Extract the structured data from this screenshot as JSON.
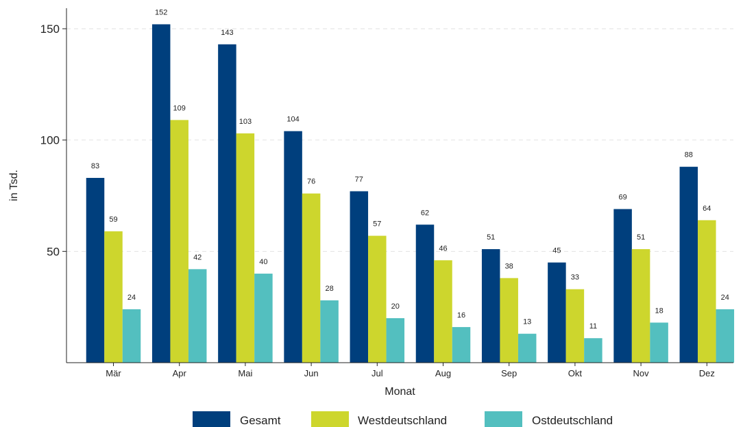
{
  "chart_data": {
    "type": "bar",
    "title": "",
    "xlabel": "Monat",
    "ylabel": "in Tsd.",
    "ylim": [
      0,
      160
    ],
    "yticks": [
      50,
      100,
      150
    ],
    "grid": "horizontal dashed",
    "legend_position": "bottom",
    "categories": [
      "Mär",
      "Apr",
      "Mai",
      "Jun",
      "Jul",
      "Aug",
      "Sep",
      "Okt",
      "Nov",
      "Dez"
    ],
    "series": [
      {
        "name": "Gesamt",
        "color": "#003f7d",
        "values": [
          83,
          152,
          143,
          104,
          77,
          62,
          51,
          45,
          69,
          88
        ]
      },
      {
        "name": "Westdeutschland",
        "color": "#cdd62d",
        "values": [
          59,
          109,
          103,
          76,
          57,
          46,
          38,
          33,
          51,
          64
        ]
      },
      {
        "name": "Ostdeutschland",
        "color": "#53bfbf",
        "values": [
          24,
          42,
          40,
          28,
          20,
          16,
          13,
          11,
          18,
          24
        ]
      }
    ]
  }
}
